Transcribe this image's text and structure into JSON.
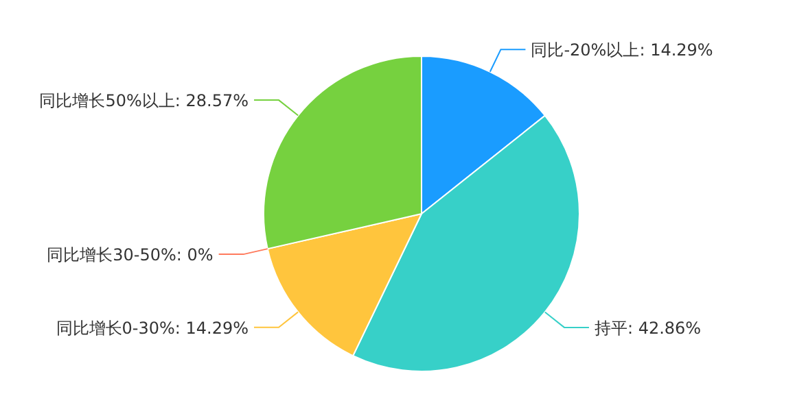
{
  "chart_data": {
    "type": "pie",
    "categories": [
      "同比-20%以上",
      "持平",
      "同比增长0-30%",
      "同比增长30-50%",
      "同比增长50%以上"
    ],
    "values": [
      14.29,
      42.86,
      14.29,
      0,
      28.57
    ],
    "value_labels": [
      "14.29%",
      "42.86%",
      "14.29%",
      "0%",
      "28.57%"
    ],
    "colors": [
      "#1a9cff",
      "#37d0c8",
      "#ffc53d",
      "#ff7a5c",
      "#76d13f"
    ]
  }
}
